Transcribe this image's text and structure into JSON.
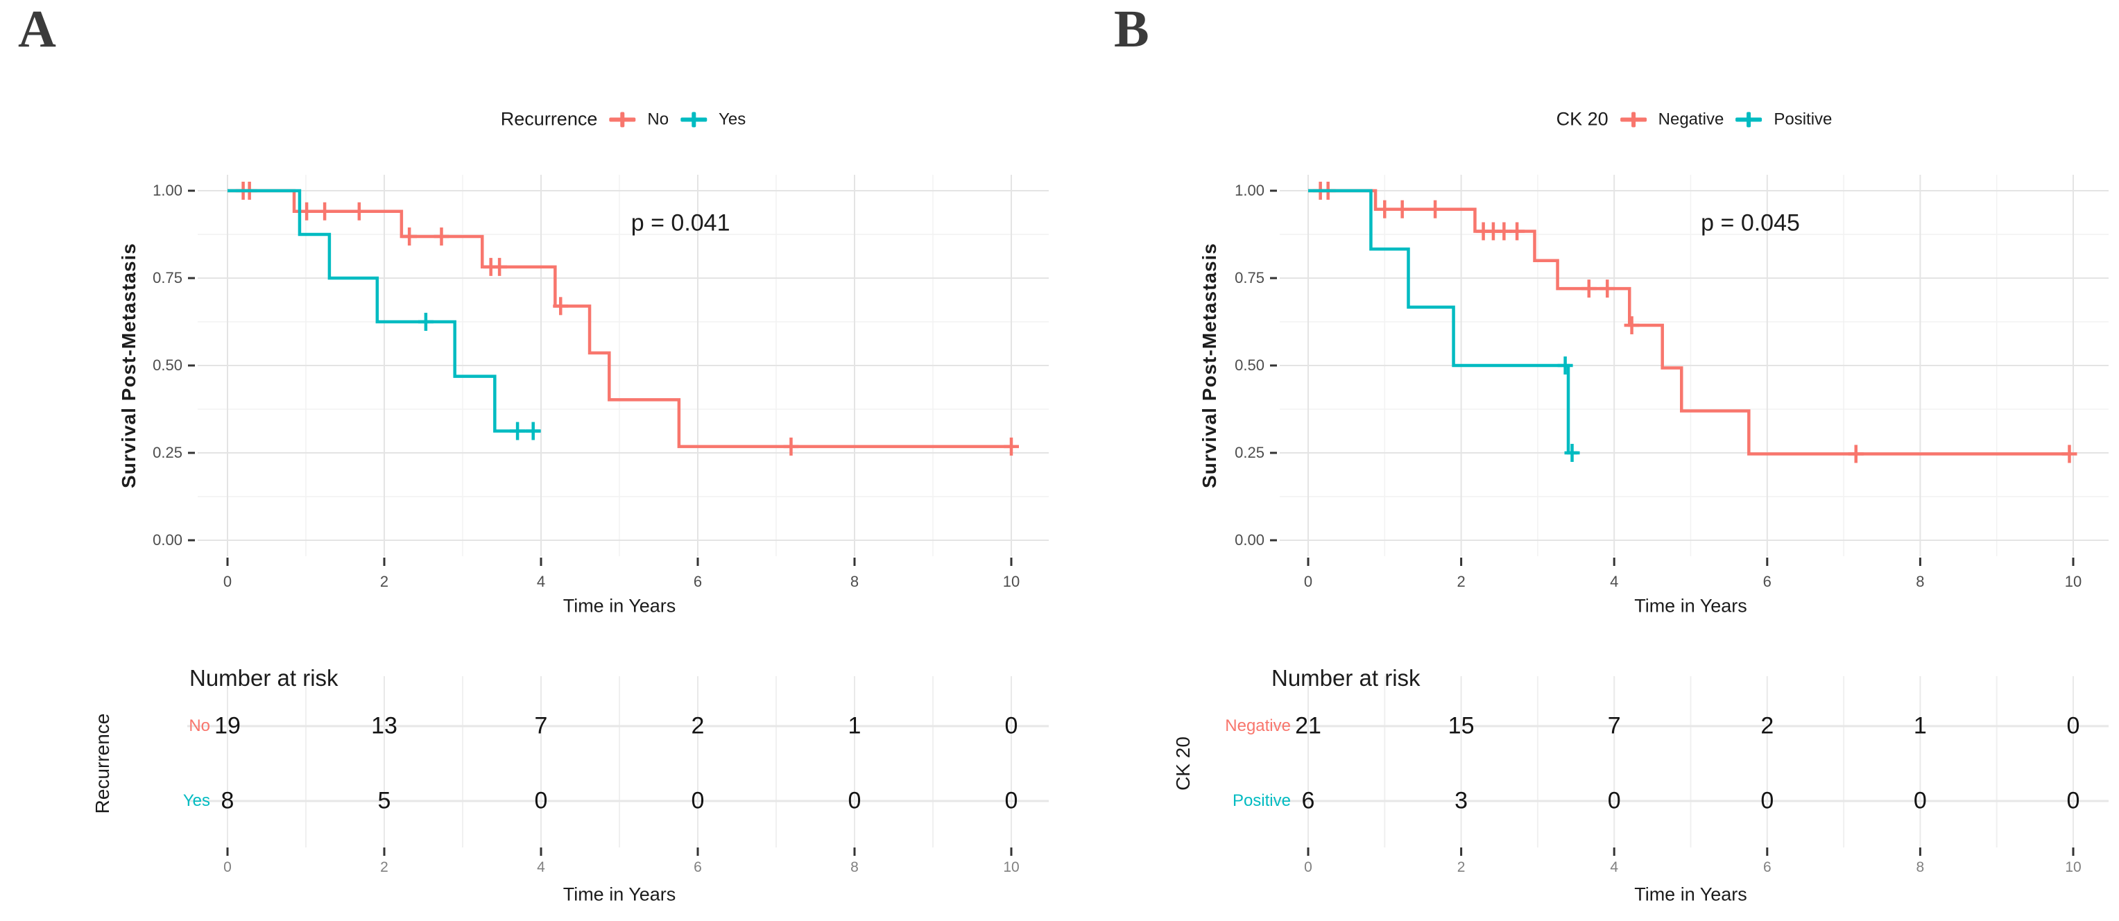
{
  "colors": {
    "accent_red": "#F8766D",
    "accent_teal": "#00BBC1",
    "grid_major": "#E4E4E4",
    "grid_minor": "#F2F2F2"
  },
  "chart_data": [
    {
      "type": "line",
      "panel_label": "A",
      "legend": {
        "title": "Recurrence",
        "items": [
          {
            "label": "No",
            "color": "#F8766D"
          },
          {
            "label": "Yes",
            "color": "#00BBC1"
          }
        ]
      },
      "pvalue": "p = 0.041",
      "xlabel": "Time in Years",
      "ylabel": "Survival Post-Metastasis",
      "xlim": [
        0,
        10
      ],
      "ylim": [
        0,
        1
      ],
      "xticks": [
        0,
        2,
        4,
        6,
        8,
        10
      ],
      "yticks": [
        "1.00",
        "0.75",
        "0.50",
        "0.25",
        "0.00"
      ],
      "series": [
        {
          "name": "No",
          "color": "#F8766D",
          "steps": [
            [
              0,
              1.0
            ],
            [
              0.85,
              0.941
            ],
            [
              2.22,
              0.869
            ],
            [
              3.25,
              0.782
            ],
            [
              4.18,
              0.67
            ],
            [
              4.62,
              0.536
            ],
            [
              4.87,
              0.402
            ],
            [
              5.76,
              0.268
            ]
          ],
          "end": 10.0,
          "censors": [
            [
              0.2,
              1.0
            ],
            [
              0.28,
              1.0
            ],
            [
              1.01,
              0.941
            ],
            [
              1.24,
              0.941
            ],
            [
              1.68,
              0.941
            ],
            [
              2.32,
              0.869
            ],
            [
              2.73,
              0.869
            ],
            [
              3.36,
              0.782
            ],
            [
              3.47,
              0.782
            ],
            [
              4.25,
              0.67
            ],
            [
              7.19,
              0.268
            ],
            [
              10.0,
              0.268
            ]
          ]
        },
        {
          "name": "Yes",
          "color": "#00BBC1",
          "steps": [
            [
              0,
              1.0
            ],
            [
              0.92,
              0.875
            ],
            [
              1.3,
              0.75
            ],
            [
              1.91,
              0.625
            ],
            [
              2.9,
              0.469
            ],
            [
              3.41,
              0.3125
            ]
          ],
          "end": 3.99,
          "censors": [
            [
              2.53,
              0.625
            ],
            [
              3.7,
              0.3125
            ],
            [
              3.9,
              0.3125
            ]
          ]
        }
      ],
      "risk_table": {
        "title": "Number at risk",
        "group_label": "Recurrence",
        "xlabel": "Time in Years",
        "times": [
          0,
          2,
          4,
          6,
          8,
          10
        ],
        "rows": [
          {
            "label": "No",
            "color": "#F8766D",
            "values": [
              19,
              13,
              7,
              2,
              1,
              0
            ]
          },
          {
            "label": "Yes",
            "color": "#00BBC1",
            "values": [
              8,
              5,
              0,
              0,
              0,
              0
            ]
          }
        ]
      }
    },
    {
      "type": "line",
      "panel_label": "B",
      "legend": {
        "title": "CK 20",
        "items": [
          {
            "label": "Negative",
            "color": "#F8766D"
          },
          {
            "label": "Positive",
            "color": "#00BBC1"
          }
        ]
      },
      "pvalue": "p = 0.045",
      "xlabel": "Time in Years",
      "ylabel": "Survival Post-Metastasis",
      "xlim": [
        0,
        10
      ],
      "ylim": [
        0,
        1
      ],
      "xticks": [
        0,
        2,
        4,
        6,
        8,
        10
      ],
      "yticks": [
        "1.00",
        "0.75",
        "0.50",
        "0.25",
        "0.00"
      ],
      "series": [
        {
          "name": "Negative",
          "color": "#F8766D",
          "steps": [
            [
              0,
              1.0
            ],
            [
              0.88,
              0.947
            ],
            [
              2.18,
              0.884
            ],
            [
              2.96,
              0.8
            ],
            [
              3.26,
              0.72
            ],
            [
              4.2,
              0.615
            ],
            [
              4.63,
              0.493
            ],
            [
              4.88,
              0.37
            ],
            [
              5.76,
              0.247
            ]
          ],
          "end": 9.97,
          "censors": [
            [
              0.16,
              1.0
            ],
            [
              0.26,
              1.0
            ],
            [
              1.0,
              0.947
            ],
            [
              1.23,
              0.947
            ],
            [
              1.66,
              0.947
            ],
            [
              2.29,
              0.884
            ],
            [
              2.42,
              0.884
            ],
            [
              2.56,
              0.884
            ],
            [
              2.73,
              0.884
            ],
            [
              3.67,
              0.72
            ],
            [
              3.91,
              0.72
            ],
            [
              4.23,
              0.615
            ],
            [
              7.16,
              0.247
            ],
            [
              9.95,
              0.247
            ]
          ]
        },
        {
          "name": "Positive",
          "color": "#00BBC1",
          "steps": [
            [
              0,
              1.0
            ],
            [
              0.82,
              0.833
            ],
            [
              1.31,
              0.667
            ],
            [
              1.9,
              0.5
            ],
            [
              3.4,
              0.25
            ]
          ],
          "end": 3.52,
          "censors": [
            [
              3.36,
              0.5
            ],
            [
              3.45,
              0.25
            ]
          ]
        }
      ],
      "risk_table": {
        "title": "Number at risk",
        "group_label": "CK 20",
        "xlabel": "Time in Years",
        "times": [
          0,
          2,
          4,
          6,
          8,
          10
        ],
        "rows": [
          {
            "label": "Negative",
            "color": "#F8766D",
            "values": [
              21,
              15,
              7,
              2,
              1,
              0
            ]
          },
          {
            "label": "Positive",
            "color": "#00BBC1",
            "values": [
              6,
              3,
              0,
              0,
              0,
              0
            ]
          }
        ]
      }
    }
  ]
}
